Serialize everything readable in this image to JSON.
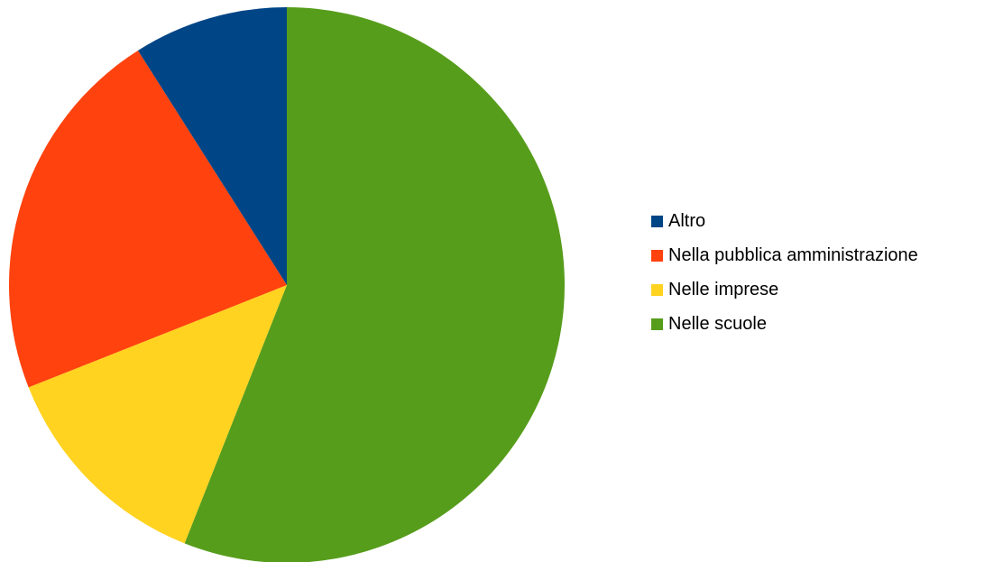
{
  "chart_data": {
    "type": "pie",
    "title": "",
    "slices": [
      {
        "label": "Altro",
        "value": 9,
        "color": "#004586"
      },
      {
        "label": "Nella pubblica amministrazione",
        "value": 22,
        "color": "#ff420e"
      },
      {
        "label": "Nelle imprese",
        "value": 13,
        "color": "#ffd320"
      },
      {
        "label": "Nelle scuole",
        "value": 56,
        "color": "#579d1c"
      }
    ],
    "slice_draw_order": [
      "Nelle scuole",
      "Nelle imprese",
      "Nella pubblica amministrazione",
      "Altro"
    ],
    "start_angle_deg": 0,
    "direction": "clockwise",
    "legend_position": "right"
  }
}
